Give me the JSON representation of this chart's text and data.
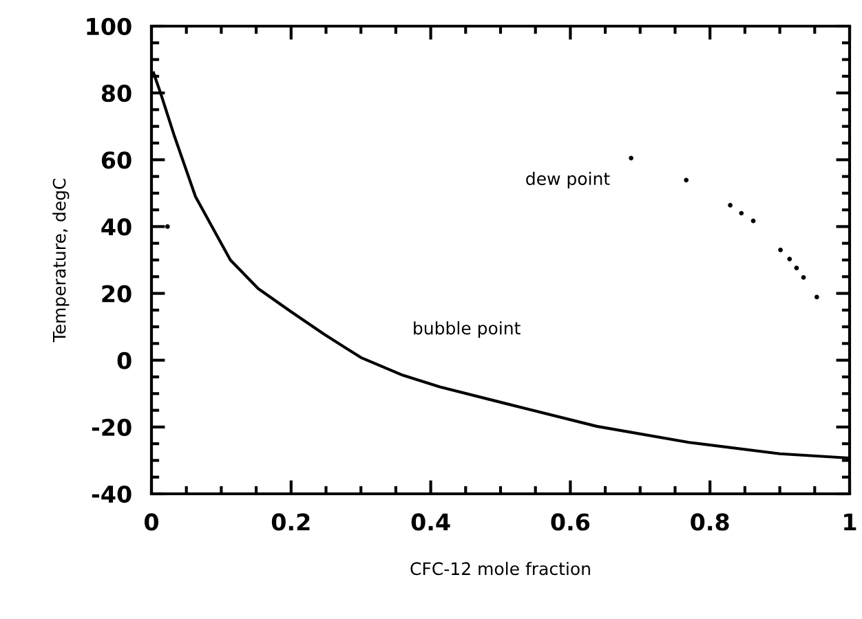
{
  "chart_data": {
    "type": "line",
    "xlabel": "CFC-12 mole fraction",
    "ylabel": "Temperature, degC",
    "xlim": [
      0,
      1
    ],
    "ylim": [
      -40,
      100
    ],
    "xticks": [
      0,
      0.2,
      0.4,
      0.6,
      0.8,
      {
        "value": 1,
        "label": "1"
      }
    ],
    "yticks": [
      -40,
      -20,
      0,
      20,
      40,
      60,
      80,
      100
    ],
    "grid": false,
    "legend": false,
    "series": [
      {
        "name": "bubble point",
        "color": "#000000",
        "line_style": "solid",
        "marker": "none",
        "x": [
          0.003,
          0.013,
          0.033,
          0.063,
          0.113,
          0.153,
          0.2,
          0.247,
          0.3,
          0.36,
          0.413,
          0.506,
          0.638,
          0.77,
          0.9,
          1.0
        ],
        "values": [
          86,
          80,
          67,
          49,
          30,
          21.4,
          14.5,
          7.8,
          0.8,
          -4.5,
          -8,
          -12.9,
          -19.8,
          -24.6,
          -28,
          -29.3
        ]
      },
      {
        "name": "dew point",
        "type": "scatter",
        "color": "#000000",
        "marker": "circle",
        "x": [
          0.023,
          0.687,
          0.766,
          0.829,
          0.845,
          0.862,
          0.901,
          0.914,
          0.924,
          0.934,
          0.953
        ],
        "values": [
          40,
          60.5,
          53.9,
          46.4,
          44,
          41.7,
          33,
          30.3,
          27.6,
          24.8,
          18.9
        ]
      }
    ]
  }
}
